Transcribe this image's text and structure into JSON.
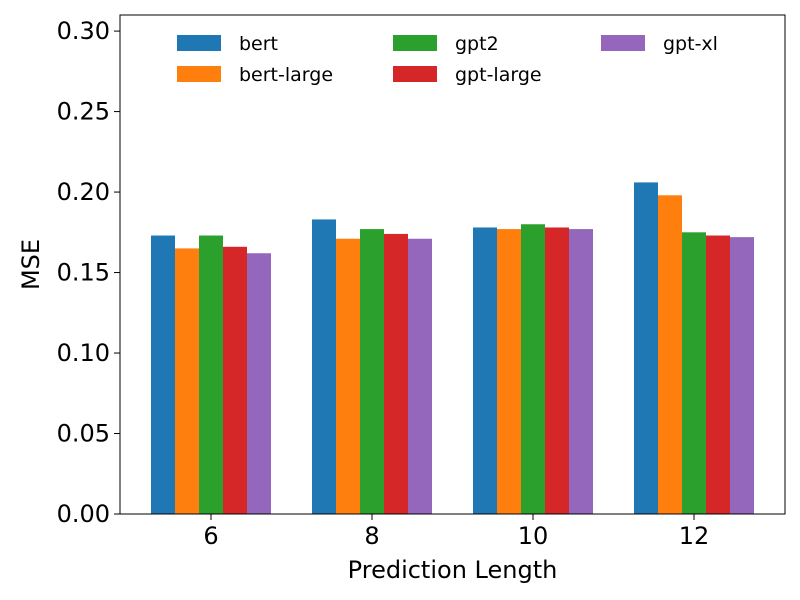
{
  "chart_data": {
    "type": "bar",
    "title": "",
    "xlabel": "Prediction Length",
    "ylabel": "MSE",
    "categories": [
      "6",
      "8",
      "10",
      "12"
    ],
    "ylim": [
      0,
      0.31
    ],
    "yticks": [
      "0.00",
      "0.05",
      "0.10",
      "0.15",
      "0.20",
      "0.25",
      "0.30"
    ],
    "ytick_values": [
      0,
      0.05,
      0.1,
      0.15,
      0.2,
      0.25,
      0.3
    ],
    "grid": false,
    "legend_position": "top",
    "series": [
      {
        "name": "bert",
        "color": "#1f77b4",
        "values": [
          0.173,
          0.183,
          0.178,
          0.206
        ]
      },
      {
        "name": "bert-large",
        "color": "#ff7f0e",
        "values": [
          0.165,
          0.171,
          0.177,
          0.198
        ]
      },
      {
        "name": "gpt2",
        "color": "#2ca02c",
        "values": [
          0.173,
          0.177,
          0.18,
          0.175
        ]
      },
      {
        "name": "gpt-large",
        "color": "#d62728",
        "values": [
          0.166,
          0.174,
          0.178,
          0.173
        ]
      },
      {
        "name": "gpt-xl",
        "color": "#9467bd",
        "values": [
          0.162,
          0.171,
          0.177,
          0.172
        ]
      }
    ]
  }
}
